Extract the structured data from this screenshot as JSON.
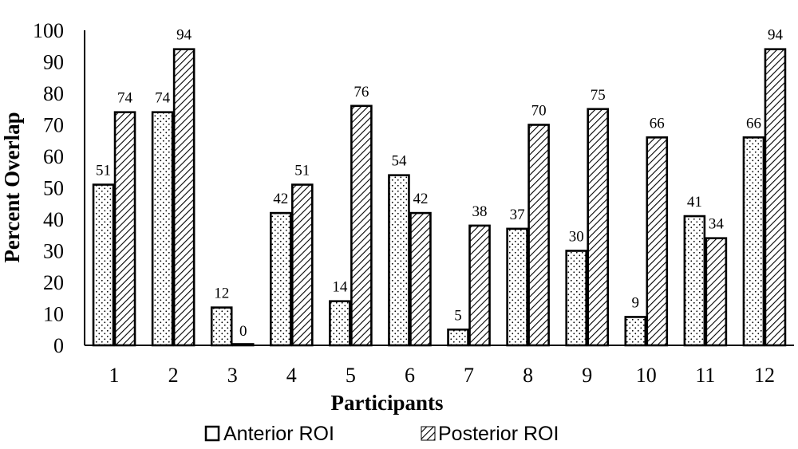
{
  "chart_data": {
    "type": "bar",
    "categories": [
      "1",
      "2",
      "3",
      "4",
      "5",
      "6",
      "7",
      "8",
      "9",
      "10",
      "11",
      "12"
    ],
    "series": [
      {
        "name": "Anterior ROI",
        "values": [
          51,
          74,
          12,
          42,
          14,
          54,
          5,
          37,
          30,
          9,
          41,
          66
        ],
        "pattern": "dots"
      },
      {
        "name": "Posterior ROI",
        "values": [
          74,
          94,
          0,
          51,
          76,
          42,
          38,
          70,
          75,
          66,
          34,
          94
        ],
        "pattern": "diagonal-hatch"
      }
    ],
    "ylim": [
      0,
      100
    ],
    "yticks": [
      0,
      10,
      20,
      30,
      40,
      50,
      60,
      70,
      80,
      90,
      100
    ],
    "xlabel": "Participants",
    "ylabel": "Percent Overlap",
    "legend_position": "bottom",
    "grid": false,
    "data_labels": true,
    "colors": {
      "bar_fill": "#ffffff",
      "bar_stroke": "#000000",
      "pattern": "#000000"
    }
  }
}
